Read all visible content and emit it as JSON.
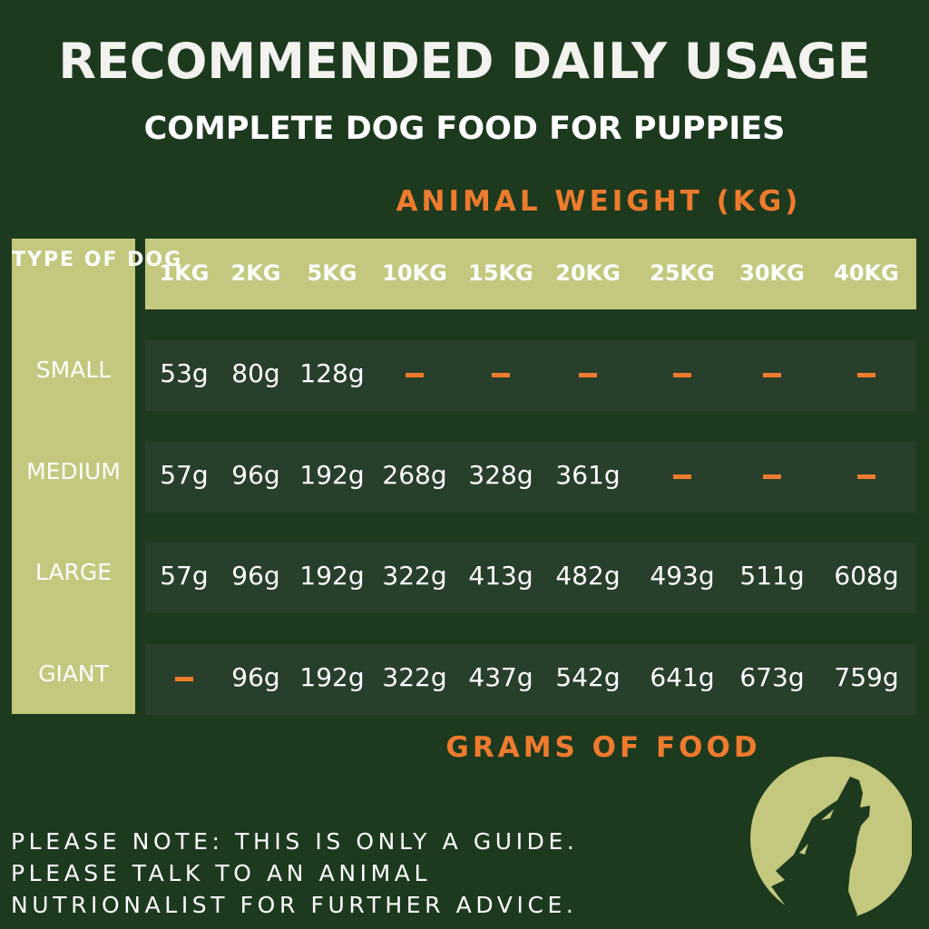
{
  "title": "RECOMMENDED DAILY USAGE",
  "subtitle": "COMPLETE DOG FOOD FOR PUPPIES",
  "weight_label": "ANIMAL WEIGHT (KG)",
  "type_label": "TYPE OF DOG",
  "columns": [
    "1KG",
    "2KG",
    "5KG",
    "10KG",
    "15KG",
    "20KG",
    "25KG",
    "30KG",
    "40KG"
  ],
  "rows": [
    {
      "label": "SMALL",
      "values": [
        "53g",
        "80g",
        "128g",
        "-",
        "-",
        "-",
        "-",
        "-",
        "-"
      ]
    },
    {
      "label": "MEDIUM",
      "values": [
        "57g",
        "96g",
        "192g",
        "268g",
        "328g",
        "361g",
        "-",
        "-",
        "-"
      ]
    },
    {
      "label": "LARGE",
      "values": [
        "57g",
        "96g",
        "192g",
        "322g",
        "413g",
        "482g",
        "493g",
        "511g",
        "608g"
      ]
    },
    {
      "label": "GIANT",
      "values": [
        "-",
        "96g",
        "192g",
        "322g",
        "437g",
        "542g",
        "641g",
        "673g",
        "759g"
      ]
    }
  ],
  "grams_label": "GRAMS OF FOOD",
  "note": [
    "PLEASE NOTE: THIS IS ONLY A GUIDE.",
    "PLEASE TALK TO AN ANIMAL",
    "NUTRIONALIST FOR FURTHER ADVICE."
  ],
  "logo": "howling-wolf-moon-icon",
  "colors": {
    "background": "#1d3a1f",
    "accent": "#ee7b2e",
    "panel": "#c3c87e",
    "row": "#283f2b"
  }
}
